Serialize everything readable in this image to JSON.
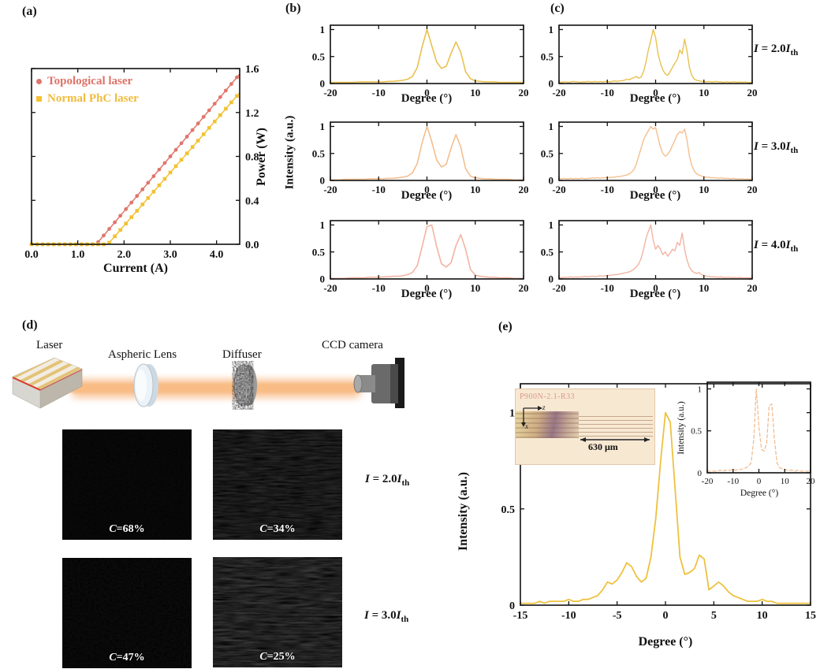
{
  "panel_a": {
    "label": "(a)",
    "xlabel": "Current (A)",
    "ylabel": "Power (W)",
    "legend": [
      {
        "label": "Topological laser",
        "color": "#e0756b",
        "marker": "circle"
      },
      {
        "label": "Normal PhC laser",
        "color": "#f2c232",
        "marker": "square"
      }
    ]
  },
  "panel_b": {
    "label": "(b)",
    "xlabel": "Degree (°)",
    "ylabel": "Intensity (a.u.)"
  },
  "panel_c": {
    "label": "(c)",
    "xlabel": "Degree (°)",
    "conditions": [
      {
        "i1": "I",
        "mid": " = 2.0",
        "i2": "I",
        "sub": "th"
      },
      {
        "i1": "I",
        "mid": " = 3.0",
        "i2": "I",
        "sub": "th"
      },
      {
        "i1": "I",
        "mid": " = 4.0",
        "i2": "I",
        "sub": "th"
      }
    ]
  },
  "panel_d": {
    "label": "(d)",
    "laser_label": "Laser",
    "lens_label": "Aspheric Lens",
    "diffuser_label": "Diffuser",
    "camera_label": "CCD camera",
    "speckles": [
      {
        "c": "C",
        "rest": "=68%"
      },
      {
        "c": "C",
        "rest": "=34%"
      },
      {
        "c": "C",
        "rest": "=47%"
      },
      {
        "c": "C",
        "rest": "=25%"
      }
    ],
    "conditions": [
      {
        "i1": "I",
        "mid": " = 2.0",
        "i2": "I",
        "sub": "th"
      },
      {
        "i1": "I",
        "mid": " = 3.0",
        "i2": "I",
        "sub": "th"
      }
    ]
  },
  "panel_e": {
    "label": "(e)",
    "xlabel": "Degree (°)",
    "ylabel": "Intensity (a.u.)",
    "inset_plot": {
      "xlabel": "Degree (°)",
      "ylabel": "Intensity (a.u.)"
    },
    "device": {
      "id_text": "P900N-2.1-R33",
      "scale": "630 μm",
      "axis_h": "z",
      "axis_v": "x"
    }
  },
  "chart_data": [
    {
      "id": "a",
      "type": "scatter-line",
      "xlabel": "Current (A)",
      "ylabel": "Power (W)",
      "xlim": [
        0,
        4.5
      ],
      "ylim": [
        0,
        1.6
      ],
      "xticks": [
        0,
        1,
        2,
        3,
        4
      ],
      "xtick_labels": [
        "0.0",
        "1.0",
        "2.0",
        "3.0",
        "4.0"
      ],
      "yticks": [
        0,
        0.4,
        0.8,
        1.2,
        1.6
      ],
      "ytick_labels": [
        "0.0",
        "0.4",
        "0.8",
        "1.2",
        "1.6"
      ],
      "ytick_side": "right",
      "series": [
        {
          "name": "Topological laser",
          "color": "#e0756b",
          "marker": "circle",
          "threshold_A": 1.4,
          "slope_W_per_A": 0.5,
          "x_max_A": 4.5,
          "max_power_W": 1.55
        },
        {
          "name": "Normal PhC laser",
          "color": "#f2c232",
          "marker": "square",
          "threshold_A": 1.65,
          "slope_W_per_A": 0.484,
          "x_max_A": 4.5,
          "max_power_W": 1.38
        }
      ]
    },
    {
      "id": "b1",
      "type": "line",
      "color": "#e9c14d",
      "lw": 1.6,
      "xlabel": "Degree (°)",
      "xlim": [
        -20,
        20
      ],
      "ylim": [
        0,
        1.08
      ],
      "xticks": [
        -20,
        -10,
        0,
        10,
        20
      ],
      "xtick_labels": [
        "-20",
        "-10",
        "0",
        "10",
        "20"
      ],
      "yticks": [
        0,
        0.5,
        1
      ],
      "ytick_labels": [
        "0",
        "0.5",
        "1"
      ],
      "x0": -20,
      "dx": 1,
      "y": [
        0.02,
        0.02,
        0.02,
        0.02,
        0.02,
        0.02,
        0.03,
        0.03,
        0.03,
        0.03,
        0.03,
        0.03,
        0.04,
        0.04,
        0.05,
        0.06,
        0.08,
        0.13,
        0.3,
        0.68,
        1.0,
        0.7,
        0.4,
        0.28,
        0.32,
        0.56,
        0.77,
        0.58,
        0.22,
        0.09,
        0.05,
        0.04,
        0.03,
        0.03,
        0.03,
        0.02,
        0.02,
        0.02,
        0.02,
        0.02,
        0.02
      ]
    },
    {
      "id": "b2",
      "type": "line",
      "color": "#f4be8e",
      "lw": 1.6,
      "xlabel": "Degree (°)",
      "ylabel": "Intensity (a.u.)",
      "xlim": [
        -20,
        20
      ],
      "ylim": [
        0,
        1.08
      ],
      "xticks": [
        -20,
        -10,
        0,
        10,
        20
      ],
      "xtick_labels": [
        "-20",
        "-10",
        "0",
        "10",
        "20"
      ],
      "yticks": [
        0,
        0.5,
        1
      ],
      "ytick_labels": [
        "0",
        "0.5",
        "1"
      ],
      "x0": -20,
      "dx": 1,
      "y": [
        0.01,
        0.01,
        0.01,
        0.02,
        0.02,
        0.02,
        0.02,
        0.02,
        0.03,
        0.03,
        0.03,
        0.03,
        0.04,
        0.04,
        0.05,
        0.06,
        0.08,
        0.14,
        0.32,
        0.7,
        1.0,
        0.72,
        0.38,
        0.25,
        0.3,
        0.6,
        0.85,
        0.62,
        0.22,
        0.08,
        0.05,
        0.04,
        0.03,
        0.03,
        0.02,
        0.02,
        0.02,
        0.02,
        0.01,
        0.01,
        0.01
      ]
    },
    {
      "id": "b3",
      "type": "line",
      "color": "#f3b4a2",
      "lw": 1.6,
      "xlabel": "Degree (°)",
      "xlim": [
        -20,
        20
      ],
      "ylim": [
        0,
        1.08
      ],
      "xticks": [
        -20,
        -10,
        0,
        10,
        20
      ],
      "xtick_labels": [
        "-20",
        "-10",
        "0",
        "10",
        "20"
      ],
      "yticks": [
        0,
        0.5,
        1
      ],
      "ytick_labels": [
        "0",
        "0.5",
        "1"
      ],
      "x0": -20,
      "dx": 1,
      "y": [
        0.01,
        0.01,
        0.01,
        0.01,
        0.02,
        0.02,
        0.02,
        0.02,
        0.03,
        0.03,
        0.03,
        0.04,
        0.04,
        0.05,
        0.05,
        0.06,
        0.08,
        0.12,
        0.25,
        0.6,
        0.97,
        1.0,
        0.6,
        0.28,
        0.22,
        0.3,
        0.62,
        0.82,
        0.55,
        0.18,
        0.07,
        0.05,
        0.04,
        0.03,
        0.03,
        0.02,
        0.02,
        0.02,
        0.01,
        0.01,
        0.01
      ]
    },
    {
      "id": "c1",
      "type": "line",
      "color": "#e9c14d",
      "lw": 1.4,
      "xlabel": "Degree (°)",
      "condition": "I = 2.0 Ith",
      "xlim": [
        -20,
        20
      ],
      "ylim": [
        0,
        1.08
      ],
      "xticks": [
        -20,
        -10,
        0,
        10,
        20
      ],
      "xtick_labels": [
        "-20",
        "-10",
        "0",
        "10",
        "20"
      ],
      "yticks": [
        0,
        0.5,
        1
      ],
      "ytick_labels": [
        "0",
        "0.5",
        "1"
      ],
      "x0": -20,
      "dx": 0.5,
      "y": [
        0.03,
        0.02,
        0.03,
        0.03,
        0.02,
        0.03,
        0.04,
        0.03,
        0.03,
        0.02,
        0.03,
        0.03,
        0.04,
        0.03,
        0.03,
        0.04,
        0.03,
        0.04,
        0.03,
        0.04,
        0.04,
        0.03,
        0.04,
        0.05,
        0.04,
        0.05,
        0.05,
        0.06,
        0.08,
        0.07,
        0.09,
        0.11,
        0.13,
        0.1,
        0.12,
        0.22,
        0.4,
        0.62,
        0.8,
        1.0,
        0.85,
        0.55,
        0.38,
        0.25,
        0.18,
        0.15,
        0.22,
        0.3,
        0.38,
        0.45,
        0.62,
        0.55,
        0.82,
        0.6,
        0.3,
        0.15,
        0.08,
        0.06,
        0.05,
        0.04,
        0.04,
        0.03,
        0.04,
        0.03,
        0.03,
        0.04,
        0.03,
        0.03,
        0.02,
        0.03,
        0.03,
        0.02,
        0.03,
        0.03,
        0.02,
        0.03,
        0.02,
        0.03,
        0.02,
        0.02,
        0.02
      ]
    },
    {
      "id": "c2",
      "type": "line",
      "color": "#f4be8e",
      "lw": 1.4,
      "xlabel": "Degree (°)",
      "condition": "I = 3.0 Ith",
      "xlim": [
        -20,
        20
      ],
      "ylim": [
        0,
        1.08
      ],
      "xticks": [
        -20,
        -10,
        0,
        10,
        20
      ],
      "xtick_labels": [
        "-20",
        "-10",
        "0",
        "10",
        "20"
      ],
      "yticks": [
        0,
        0.5,
        1
      ],
      "ytick_labels": [
        "0",
        "0.5",
        "1"
      ],
      "x0": -20,
      "dx": 0.5,
      "y": [
        0.03,
        0.03,
        0.04,
        0.03,
        0.03,
        0.04,
        0.03,
        0.04,
        0.03,
        0.04,
        0.04,
        0.03,
        0.04,
        0.04,
        0.05,
        0.04,
        0.05,
        0.04,
        0.05,
        0.05,
        0.06,
        0.05,
        0.06,
        0.06,
        0.07,
        0.07,
        0.08,
        0.09,
        0.1,
        0.12,
        0.15,
        0.2,
        0.3,
        0.45,
        0.6,
        0.75,
        0.85,
        0.92,
        1.0,
        0.95,
        0.98,
        0.8,
        0.62,
        0.5,
        0.45,
        0.48,
        0.55,
        0.65,
        0.75,
        0.85,
        0.9,
        0.88,
        0.95,
        0.75,
        0.45,
        0.28,
        0.18,
        0.12,
        0.1,
        0.08,
        0.07,
        0.06,
        0.06,
        0.05,
        0.05,
        0.05,
        0.04,
        0.05,
        0.04,
        0.04,
        0.04,
        0.03,
        0.04,
        0.03,
        0.03,
        0.03,
        0.03,
        0.02,
        0.03,
        0.02,
        0.02
      ]
    },
    {
      "id": "c3",
      "type": "line",
      "color": "#f3b4a2",
      "lw": 1.4,
      "xlabel": "Degree (°)",
      "condition": "I = 4.0 Ith",
      "xlim": [
        -20,
        20
      ],
      "ylim": [
        0,
        1.08
      ],
      "xticks": [
        -20,
        -10,
        0,
        10,
        20
      ],
      "xtick_labels": [
        "-20",
        "-10",
        "0",
        "10",
        "20"
      ],
      "yticks": [
        0,
        0.5,
        1
      ],
      "ytick_labels": [
        "0",
        "0.5",
        "1"
      ],
      "x0": -20,
      "dx": 0.5,
      "y": [
        0.03,
        0.02,
        0.03,
        0.03,
        0.03,
        0.04,
        0.03,
        0.04,
        0.03,
        0.04,
        0.04,
        0.05,
        0.04,
        0.05,
        0.05,
        0.04,
        0.05,
        0.06,
        0.05,
        0.06,
        0.06,
        0.07,
        0.07,
        0.08,
        0.08,
        0.09,
        0.1,
        0.11,
        0.12,
        0.13,
        0.15,
        0.18,
        0.22,
        0.28,
        0.38,
        0.55,
        0.75,
        0.88,
        1.0,
        0.72,
        0.55,
        0.62,
        0.55,
        0.45,
        0.5,
        0.42,
        0.48,
        0.55,
        0.52,
        0.68,
        0.62,
        0.85,
        0.55,
        0.35,
        0.22,
        0.15,
        0.12,
        0.1,
        0.12,
        0.08,
        0.06,
        0.05,
        0.05,
        0.04,
        0.04,
        0.04,
        0.03,
        0.04,
        0.03,
        0.03,
        0.03,
        0.03,
        0.02,
        0.03,
        0.02,
        0.03,
        0.02,
        0.02,
        0.02,
        0.02,
        0.02
      ]
    },
    {
      "id": "e",
      "type": "line",
      "color": "#eec13e",
      "lw": 1.8,
      "xlabel": "Degree (°)",
      "ylabel": "Intensity (a.u.)",
      "xlim": [
        -15,
        15
      ],
      "ylim": [
        0,
        1.15
      ],
      "xticks": [
        -15,
        -10,
        -5,
        0,
        5,
        10,
        15
      ],
      "xtick_labels": [
        "-15",
        "-10",
        "-5",
        "0",
        "5",
        "10",
        "15"
      ],
      "yticks": [
        0,
        0.5,
        1
      ],
      "ytick_labels": [
        "0",
        "0.5",
        "1"
      ],
      "x0": -15,
      "dx": 0.5,
      "y": [
        0.01,
        0.01,
        0.01,
        0.01,
        0.02,
        0.01,
        0.02,
        0.02,
        0.02,
        0.02,
        0.03,
        0.02,
        0.02,
        0.03,
        0.03,
        0.04,
        0.05,
        0.08,
        0.12,
        0.11,
        0.13,
        0.17,
        0.22,
        0.2,
        0.15,
        0.12,
        0.14,
        0.25,
        0.45,
        0.75,
        1.0,
        0.95,
        0.6,
        0.25,
        0.16,
        0.17,
        0.19,
        0.26,
        0.24,
        0.08,
        0.1,
        0.12,
        0.1,
        0.07,
        0.05,
        0.04,
        0.03,
        0.02,
        0.02,
        0.02,
        0.03,
        0.02,
        0.02,
        0.01,
        0.01,
        0.01,
        0.01,
        0.01,
        0.01,
        0.01,
        0.01
      ]
    },
    {
      "id": "ei",
      "type": "line",
      "color": "#f0bd92",
      "lw": 1.3,
      "dash": "4 3",
      "xlabel": "Degree (°)",
      "ylabel": "Intensity (a.u.)",
      "xlim": [
        -20,
        20
      ],
      "ylim": [
        0,
        1.08
      ],
      "xticks": [
        -20,
        -10,
        0,
        10,
        20
      ],
      "xtick_labels": [
        "-20",
        "-10",
        "0",
        "10",
        "20"
      ],
      "yticks": [
        0,
        0.5,
        1
      ],
      "ytick_labels": [
        "0",
        "0.5",
        "1"
      ],
      "x0": -20,
      "dx": 1,
      "y": [
        0.02,
        0.02,
        0.02,
        0.02,
        0.02,
        0.03,
        0.02,
        0.03,
        0.03,
        0.03,
        0.04,
        0.03,
        0.04,
        0.04,
        0.05,
        0.06,
        0.08,
        0.12,
        0.4,
        1.0,
        0.55,
        0.28,
        0.26,
        0.35,
        0.8,
        0.82,
        0.4,
        0.12,
        0.06,
        0.05,
        0.04,
        0.03,
        0.03,
        0.03,
        0.02,
        0.03,
        0.02,
        0.02,
        0.02,
        0.02,
        0.02
      ]
    }
  ]
}
